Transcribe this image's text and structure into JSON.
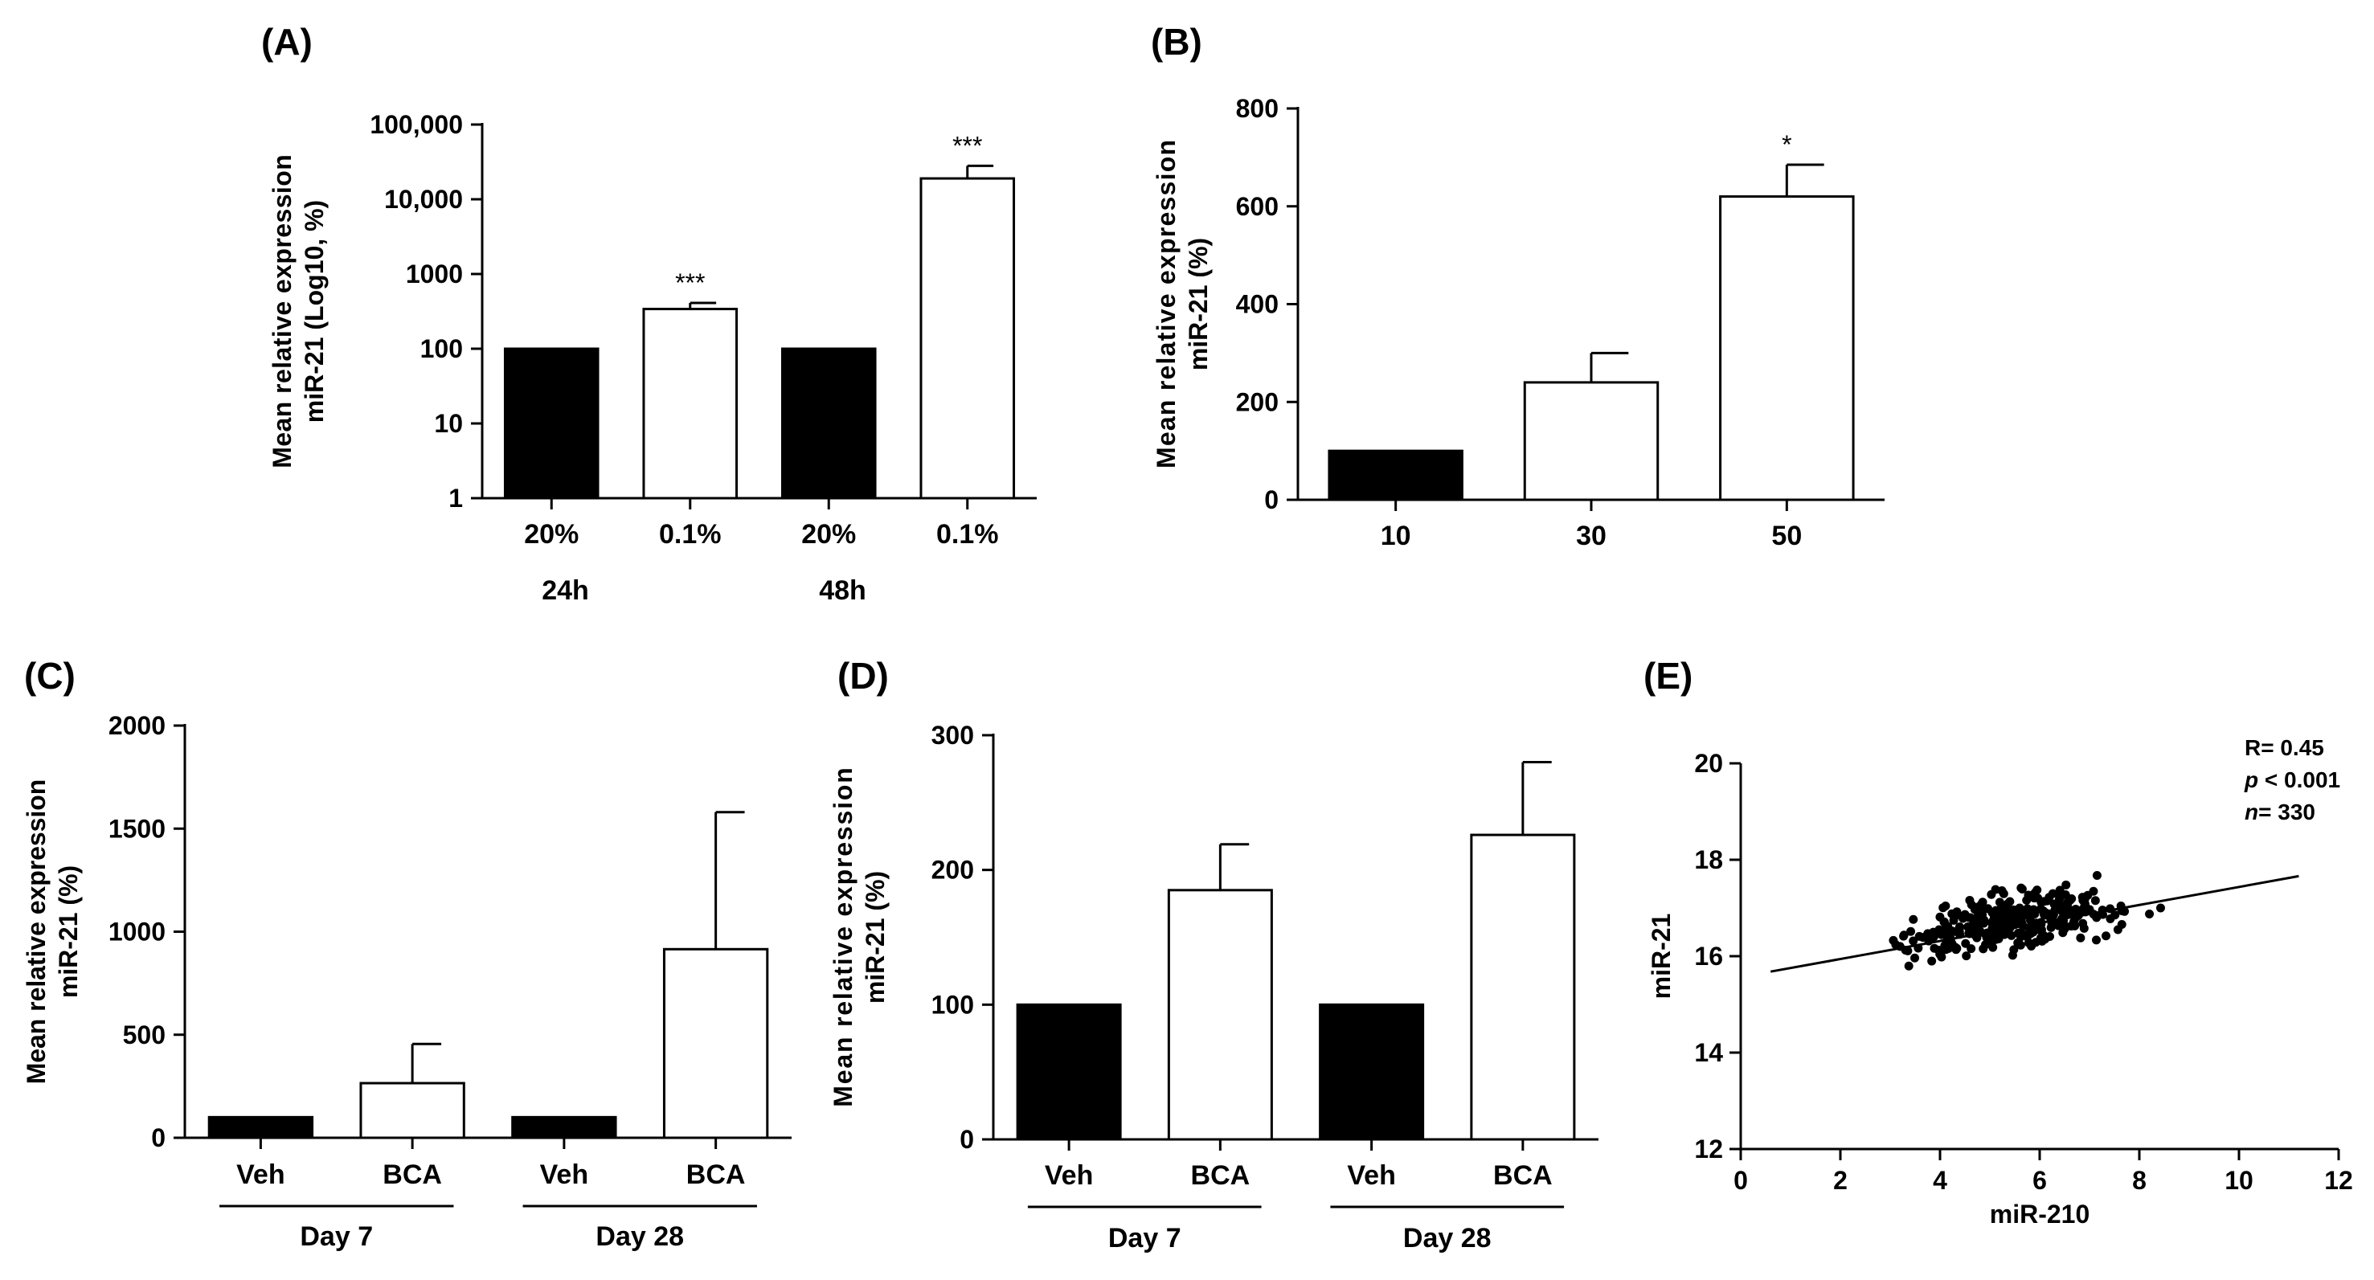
{
  "colors": {
    "control": "#000000",
    "treated": "#ffffff",
    "stroke": "#000000"
  },
  "chart_data": [
    {
      "panel": "(A)",
      "type": "bar",
      "scale": "log10",
      "ylabel": [
        "Mean relative expression",
        "miR-21 (Log10, %)"
      ],
      "yticks": [
        1,
        10,
        100,
        1000,
        10000,
        100000
      ],
      "yticklabels": [
        "1",
        "10",
        "100",
        "1000",
        "10,000",
        "100,000"
      ],
      "ylim": [
        1,
        100000
      ],
      "categories": [
        "20%",
        "0.1%",
        "20%",
        "0.1%"
      ],
      "values": [
        100,
        340,
        100,
        19000
      ],
      "errors": [
        0,
        70,
        0,
        9000
      ],
      "fills": [
        "control",
        "treated",
        "control",
        "treated"
      ],
      "significance": [
        "",
        "***",
        "",
        "***"
      ],
      "groups": [
        {
          "label": "24h",
          "from": 0,
          "to": 1
        },
        {
          "label": "48h",
          "from": 2,
          "to": 3
        }
      ],
      "group_lines": false
    },
    {
      "panel": "(B)",
      "type": "bar",
      "scale": "linear",
      "ylabel": [
        "Mean relative expression",
        "miR-21 (%)"
      ],
      "yticks": [
        0,
        200,
        400,
        600,
        800
      ],
      "yticklabels": [
        "0",
        "200",
        "400",
        "600",
        "800"
      ],
      "ylim": [
        0,
        800
      ],
      "categories": [
        "10",
        "30",
        "50"
      ],
      "values": [
        100,
        240,
        620
      ],
      "errors": [
        0,
        60,
        65
      ],
      "fills": [
        "control",
        "treated",
        "treated"
      ],
      "significance": [
        "",
        "",
        "*"
      ],
      "groups": [],
      "group_lines": false
    },
    {
      "panel": "(C)",
      "type": "bar",
      "scale": "linear",
      "ylabel": [
        "Mean relative expression",
        "miR-21 (%)"
      ],
      "yticks": [
        0,
        500,
        1000,
        1500,
        2000
      ],
      "yticklabels": [
        "0",
        "500",
        "1000",
        "1500",
        "2000"
      ],
      "ylim": [
        0,
        2000
      ],
      "categories": [
        "Veh",
        "BCA",
        "Veh",
        "BCA"
      ],
      "values": [
        100,
        265,
        100,
        915
      ],
      "errors": [
        0,
        190,
        0,
        665
      ],
      "fills": [
        "control",
        "treated",
        "control",
        "treated"
      ],
      "significance": [
        "",
        "",
        "",
        ""
      ],
      "groups": [
        {
          "label": "Day 7",
          "from": 0,
          "to": 1
        },
        {
          "label": "Day 28",
          "from": 2,
          "to": 3
        }
      ],
      "group_lines": true
    },
    {
      "panel": "(D)",
      "type": "bar",
      "scale": "linear",
      "ylabel": [
        "Mean relative expression",
        "miR-21 (%)"
      ],
      "yticks": [
        0,
        100,
        200,
        300
      ],
      "yticklabels": [
        "0",
        "100",
        "200",
        "300"
      ],
      "ylim": [
        0,
        300
      ],
      "categories": [
        "Veh",
        "BCA",
        "Veh",
        "BCA"
      ],
      "values": [
        100,
        185,
        100,
        226
      ],
      "errors": [
        0,
        34,
        0,
        54
      ],
      "fills": [
        "control",
        "treated",
        "control",
        "treated"
      ],
      "significance": [
        "",
        "",
        "",
        ""
      ],
      "groups": [
        {
          "label": "Day 7",
          "from": 0,
          "to": 1
        },
        {
          "label": "Day 28",
          "from": 2,
          "to": 3
        }
      ],
      "group_lines": true
    },
    {
      "panel": "(E)",
      "type": "scatter",
      "xlabel": "miR-210",
      "ylabel": "miR-21",
      "xlim": [
        0,
        12
      ],
      "ylim": [
        12,
        20
      ],
      "xticks": [
        0,
        2,
        4,
        6,
        8,
        10,
        12
      ],
      "yticks": [
        12,
        14,
        16,
        18,
        20
      ],
      "regression": {
        "x": [
          0.6,
          11.2
        ],
        "y": [
          15.68,
          17.66
        ]
      },
      "stats": [
        "R= 0.45",
        "p < 0.001",
        "n= 330"
      ],
      "n_points": 330
    }
  ]
}
